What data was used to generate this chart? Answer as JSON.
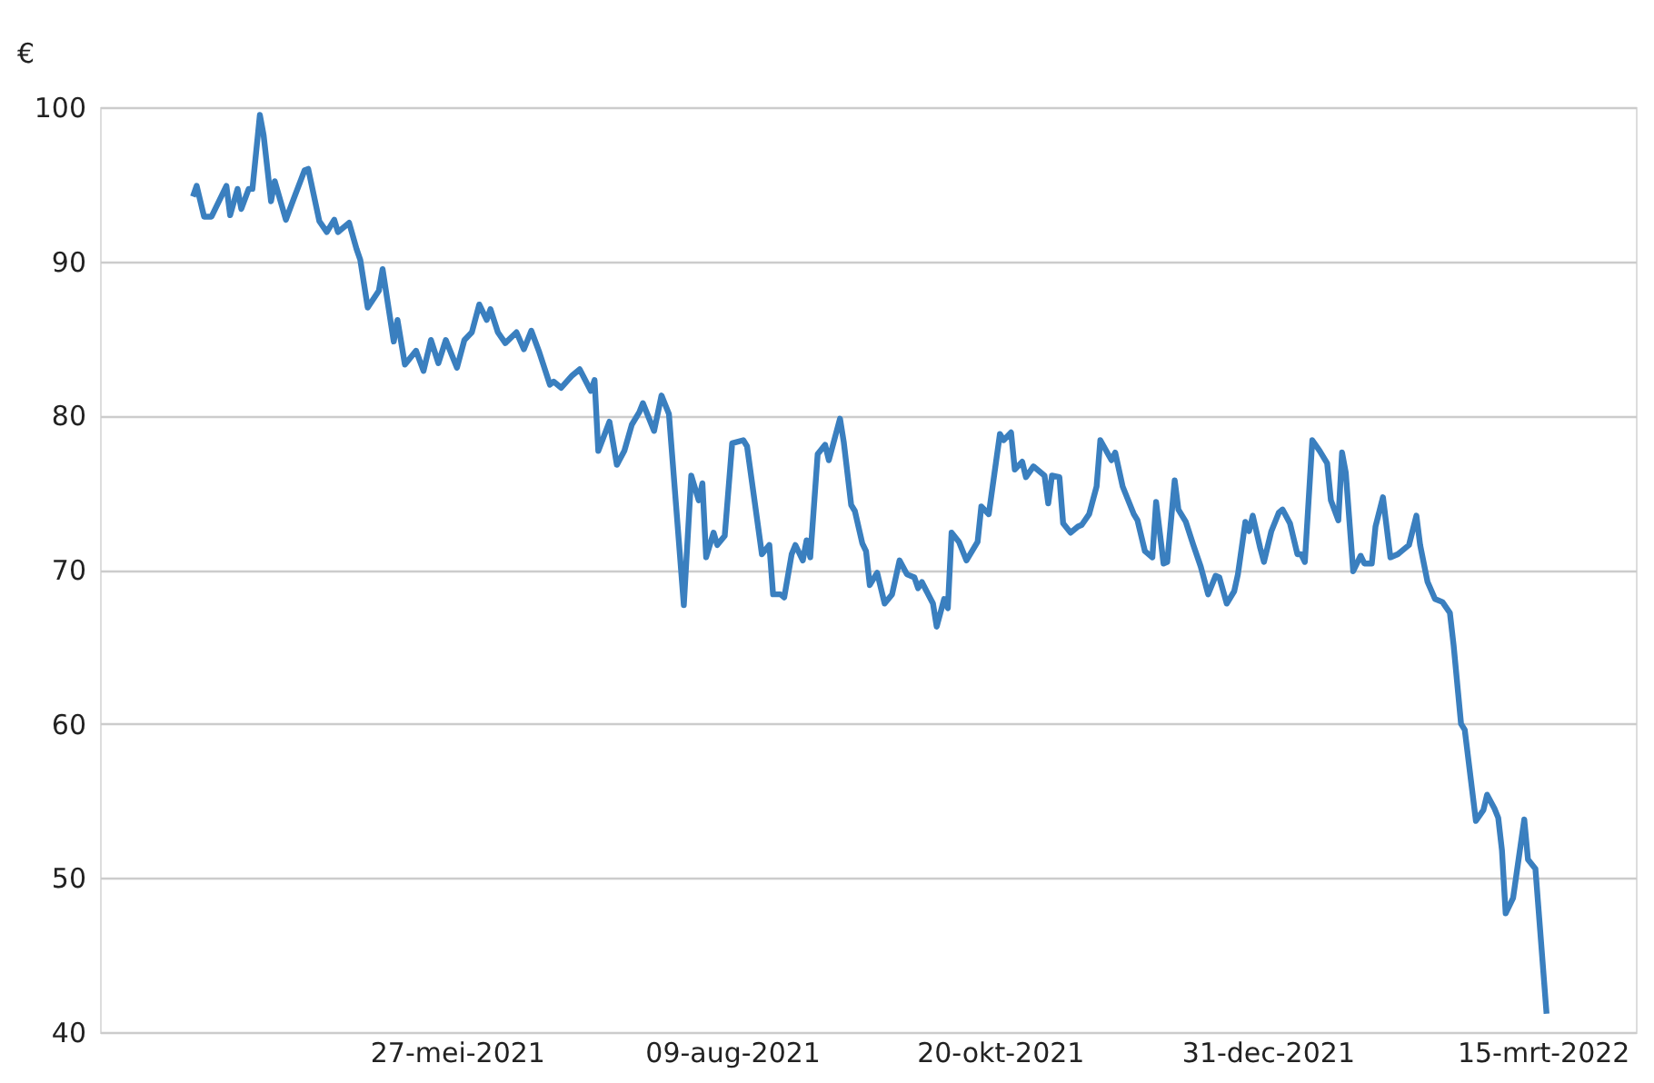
{
  "chart_data": {
    "type": "line",
    "ylabel": "€",
    "x": [
      "2021-03-17",
      "2021-03-18",
      "2021-03-20",
      "2021-03-22",
      "2021-03-26",
      "2021-03-27",
      "2021-03-29",
      "2021-03-30",
      "2021-04-01",
      "2021-04-02",
      "2021-04-04",
      "2021-04-05",
      "2021-04-07",
      "2021-04-08",
      "2021-04-11",
      "2021-04-13",
      "2021-04-16",
      "2021-04-17",
      "2021-04-20",
      "2021-04-22",
      "2021-04-24",
      "2021-04-25",
      "2021-04-28",
      "2021-04-30",
      "2021-05-01",
      "2021-05-03",
      "2021-05-06",
      "2021-05-07",
      "2021-05-10",
      "2021-05-11",
      "2021-05-13",
      "2021-05-16",
      "2021-05-18",
      "2021-05-20",
      "2021-05-22",
      "2021-05-24",
      "2021-05-27",
      "2021-05-29",
      "2021-05-31",
      "2021-06-02",
      "2021-06-04",
      "2021-06-05",
      "2021-06-07",
      "2021-06-09",
      "2021-06-12",
      "2021-06-14",
      "2021-06-16",
      "2021-06-18",
      "2021-06-21",
      "2021-06-22",
      "2021-06-24",
      "2021-06-27",
      "2021-06-29",
      "2021-07-02",
      "2021-07-03",
      "2021-07-04",
      "2021-07-07",
      "2021-07-09",
      "2021-07-11",
      "2021-07-13",
      "2021-07-15",
      "2021-07-16",
      "2021-07-19",
      "2021-07-21",
      "2021-07-23",
      "2021-07-27",
      "2021-07-29",
      "2021-07-31",
      "2021-08-01",
      "2021-08-02",
      "2021-08-04",
      "2021-08-05",
      "2021-08-07",
      "2021-08-09",
      "2021-08-12",
      "2021-08-13",
      "2021-08-17",
      "2021-08-19",
      "2021-08-20",
      "2021-08-22",
      "2021-08-23",
      "2021-08-25",
      "2021-08-26",
      "2021-08-28",
      "2021-08-29",
      "2021-08-30",
      "2021-09-01",
      "2021-09-03",
      "2021-09-04",
      "2021-09-06",
      "2021-09-07",
      "2021-09-08",
      "2021-09-10",
      "2021-09-11",
      "2021-09-13",
      "2021-09-14",
      "2021-09-15",
      "2021-09-17",
      "2021-09-19",
      "2021-09-21",
      "2021-09-23",
      "2021-09-25",
      "2021-09-27",
      "2021-09-28",
      "2021-09-29",
      "2021-10-02",
      "2021-10-03",
      "2021-10-05",
      "2021-10-06",
      "2021-10-07",
      "2021-10-09",
      "2021-10-11",
      "2021-10-14",
      "2021-10-15",
      "2021-10-17",
      "2021-10-20",
      "2021-10-21",
      "2021-10-23",
      "2021-10-24",
      "2021-10-26",
      "2021-10-27",
      "2021-10-29",
      "2021-11-01",
      "2021-11-02",
      "2021-11-03",
      "2021-11-05",
      "2021-11-06",
      "2021-11-08",
      "2021-11-10",
      "2021-11-11",
      "2021-11-13",
      "2021-11-15",
      "2021-11-16",
      "2021-11-19",
      "2021-11-20",
      "2021-11-22",
      "2021-11-25",
      "2021-11-26",
      "2021-11-28",
      "2021-11-30",
      "2021-12-01",
      "2021-12-03",
      "2021-12-04",
      "2021-12-06",
      "2021-12-07",
      "2021-12-09",
      "2021-12-11",
      "2021-12-13",
      "2021-12-15",
      "2021-12-17",
      "2021-12-18",
      "2021-12-20",
      "2021-12-22",
      "2021-12-23",
      "2021-12-25",
      "2021-12-26",
      "2021-12-27",
      "2021-12-29",
      "2021-12-30",
      "2022-01-01",
      "2022-01-03",
      "2022-01-04",
      "2022-01-06",
      "2022-01-08",
      "2022-01-09",
      "2022-01-10",
      "2022-01-12",
      "2022-01-14",
      "2022-01-16",
      "2022-01-17",
      "2022-01-19",
      "2022-01-20",
      "2022-01-21",
      "2022-01-23",
      "2022-01-25",
      "2022-01-26",
      "2022-01-28",
      "2022-01-29",
      "2022-01-31",
      "2022-02-02",
      "2022-02-04",
      "2022-02-05",
      "2022-02-07",
      "2022-02-09",
      "2022-02-10",
      "2022-02-12",
      "2022-02-14",
      "2022-02-16",
      "2022-02-18",
      "2022-02-19",
      "2022-02-21",
      "2022-02-22",
      "2022-02-25",
      "2022-02-27",
      "2022-02-28",
      "2022-03-02",
      "2022-03-03",
      "2022-03-04",
      "2022-03-05",
      "2022-03-07",
      "2022-03-08",
      "2022-03-10",
      "2022-03-11",
      "2022-03-13",
      "2022-03-16"
    ],
    "series": [
      {
        "color": "#3a7fbf",
        "values": [
          94.2,
          94.9,
          92.9,
          92.9,
          94.9,
          93.0,
          94.7,
          93.4,
          94.7,
          94.7,
          99.5,
          98.2,
          93.9,
          95.2,
          92.7,
          94.0,
          95.9,
          96.0,
          92.6,
          91.9,
          92.7,
          91.9,
          92.5,
          90.8,
          90.1,
          87.0,
          88.1,
          89.5,
          84.8,
          86.2,
          83.3,
          84.2,
          82.9,
          84.9,
          83.4,
          84.9,
          83.1,
          84.9,
          85.4,
          87.2,
          86.2,
          86.9,
          85.4,
          84.7,
          85.4,
          84.3,
          85.5,
          84.2,
          82.0,
          82.2,
          81.8,
          82.6,
          83.0,
          81.6,
          82.3,
          77.7,
          79.6,
          76.8,
          77.7,
          79.4,
          80.2,
          80.8,
          79.0,
          81.3,
          80.1,
          67.7,
          76.1,
          74.5,
          75.6,
          70.8,
          72.4,
          71.6,
          72.2,
          78.2,
          78.4,
          78.0,
          71.0,
          71.6,
          68.4,
          68.4,
          68.2,
          71.0,
          71.6,
          70.6,
          71.9,
          70.8,
          77.5,
          78.1,
          77.1,
          78.9,
          79.8,
          78.3,
          74.2,
          73.8,
          71.7,
          71.2,
          69.0,
          69.8,
          67.8,
          68.4,
          70.6,
          69.7,
          69.5,
          68.8,
          69.2,
          67.8,
          66.3,
          68.1,
          67.5,
          72.4,
          71.8,
          70.6,
          71.8,
          74.1,
          73.6,
          78.8,
          78.4,
          78.9,
          76.5,
          77.0,
          76.0,
          76.7,
          76.1,
          74.3,
          76.1,
          76.0,
          73.0,
          72.4,
          72.8,
          72.9,
          73.6,
          75.4,
          78.4,
          77.1,
          77.6,
          75.4,
          73.6,
          73.2,
          71.2,
          70.8,
          74.4,
          70.4,
          70.5,
          75.8,
          73.9,
          73.1,
          71.6,
          70.2,
          68.4,
          69.6,
          69.5,
          67.8,
          68.6,
          69.7,
          73.1,
          72.5,
          73.5,
          71.4,
          70.5,
          72.5,
          73.7,
          73.9,
          73.0,
          71.0,
          71.0,
          70.5,
          78.4,
          77.7,
          76.9,
          74.5,
          73.2,
          77.6,
          76.3,
          69.9,
          70.9,
          70.4,
          70.4,
          72.8,
          74.7,
          70.8,
          71.0,
          71.2,
          71.6,
          73.5,
          71.6,
          69.2,
          68.1,
          67.9,
          67.2,
          65.1,
          60.0,
          59.6,
          53.7,
          54.4,
          55.4,
          54.5,
          53.9,
          51.8,
          47.7,
          48.7,
          50.4,
          53.8,
          51.2,
          50.6,
          41.2
        ]
      }
    ],
    "xlim": [
      "2021-02-20",
      "2022-04-09"
    ],
    "xticks": [
      {
        "value": "2021-05-27",
        "label": "27-mei-2021"
      },
      {
        "value": "2021-08-09",
        "label": "09-aug-2021"
      },
      {
        "value": "2021-10-20",
        "label": "20-okt-2021"
      },
      {
        "value": "2021-12-31",
        "label": "31-dec-2021"
      },
      {
        "value": "2022-03-15",
        "label": "15-mrt-2022"
      }
    ],
    "ylim": [
      40,
      100
    ],
    "yticks": [
      40,
      50,
      60,
      70,
      80,
      90,
      100
    ],
    "grid": "y",
    "marker": "none",
    "line_style": "solid"
  }
}
